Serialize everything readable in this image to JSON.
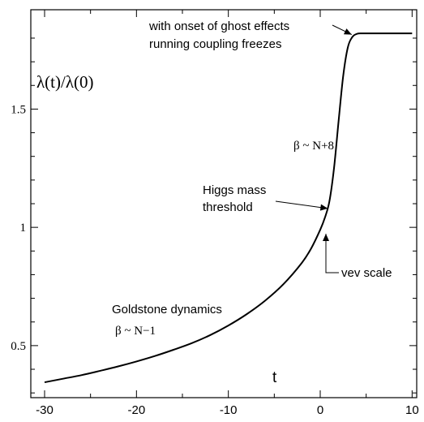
{
  "chart_data": {
    "type": "line",
    "title": "",
    "xlabel": "t",
    "ylabel": "λ(t)/λ(0)",
    "xlim": [
      -31.5,
      10.5
    ],
    "ylim": [
      0.28,
      1.92
    ],
    "x_ticks": [
      -30,
      -20,
      -10,
      0,
      10
    ],
    "x_tick_labels": [
      "-30",
      "-20",
      "-10",
      "0",
      "10"
    ],
    "y_ticks": [
      0.5,
      1,
      1.5
    ],
    "y_tick_labels": [
      "0.5",
      "1",
      "1.5"
    ],
    "grid": false,
    "legend": "none",
    "series": [
      {
        "name": "",
        "x": [
          -30,
          -28,
          -26,
          -24,
          -22,
          -20,
          -18,
          -16,
          -14,
          -12,
          -10,
          -8,
          -6,
          -4,
          -2,
          -1,
          0,
          0.5,
          1,
          1.5,
          2,
          2.5,
          3,
          3.5,
          4,
          4.5,
          5,
          6,
          8,
          10
        ],
        "y": [
          0.345,
          0.36,
          0.375,
          0.393,
          0.412,
          0.433,
          0.456,
          0.482,
          0.51,
          0.544,
          0.585,
          0.633,
          0.69,
          0.76,
          0.85,
          0.91,
          0.99,
          1.04,
          1.11,
          1.25,
          1.45,
          1.64,
          1.76,
          1.805,
          1.818,
          1.82,
          1.82,
          1.82,
          1.82,
          1.82
        ]
      }
    ],
    "annotations": [
      {
        "id": "ghost",
        "text": [
          "with onset of ghost effects",
          "running coupling freezes"
        ],
        "font": "sans",
        "arrow": true,
        "arrow_to": [
          3.6,
          1.815
        ]
      },
      {
        "id": "beta_top",
        "text": [
          "β ~ N+8"
        ],
        "font": "serif",
        "arrow": false
      },
      {
        "id": "higgs",
        "text": [
          "Higgs mass",
          "threshold"
        ],
        "font": "sans",
        "arrow": true,
        "arrow_to": [
          1.0,
          1.08
        ]
      },
      {
        "id": "vev",
        "text": [
          "vev scale"
        ],
        "font": "sans",
        "arrow": true,
        "arrow_to": [
          0.2,
          0.98
        ]
      },
      {
        "id": "goldstone",
        "text": [
          "Goldstone dynamics"
        ],
        "font": "sans",
        "arrow": false
      },
      {
        "id": "beta_bottom",
        "text": [
          "β ~ N−1"
        ],
        "font": "serif",
        "arrow": false
      }
    ]
  }
}
